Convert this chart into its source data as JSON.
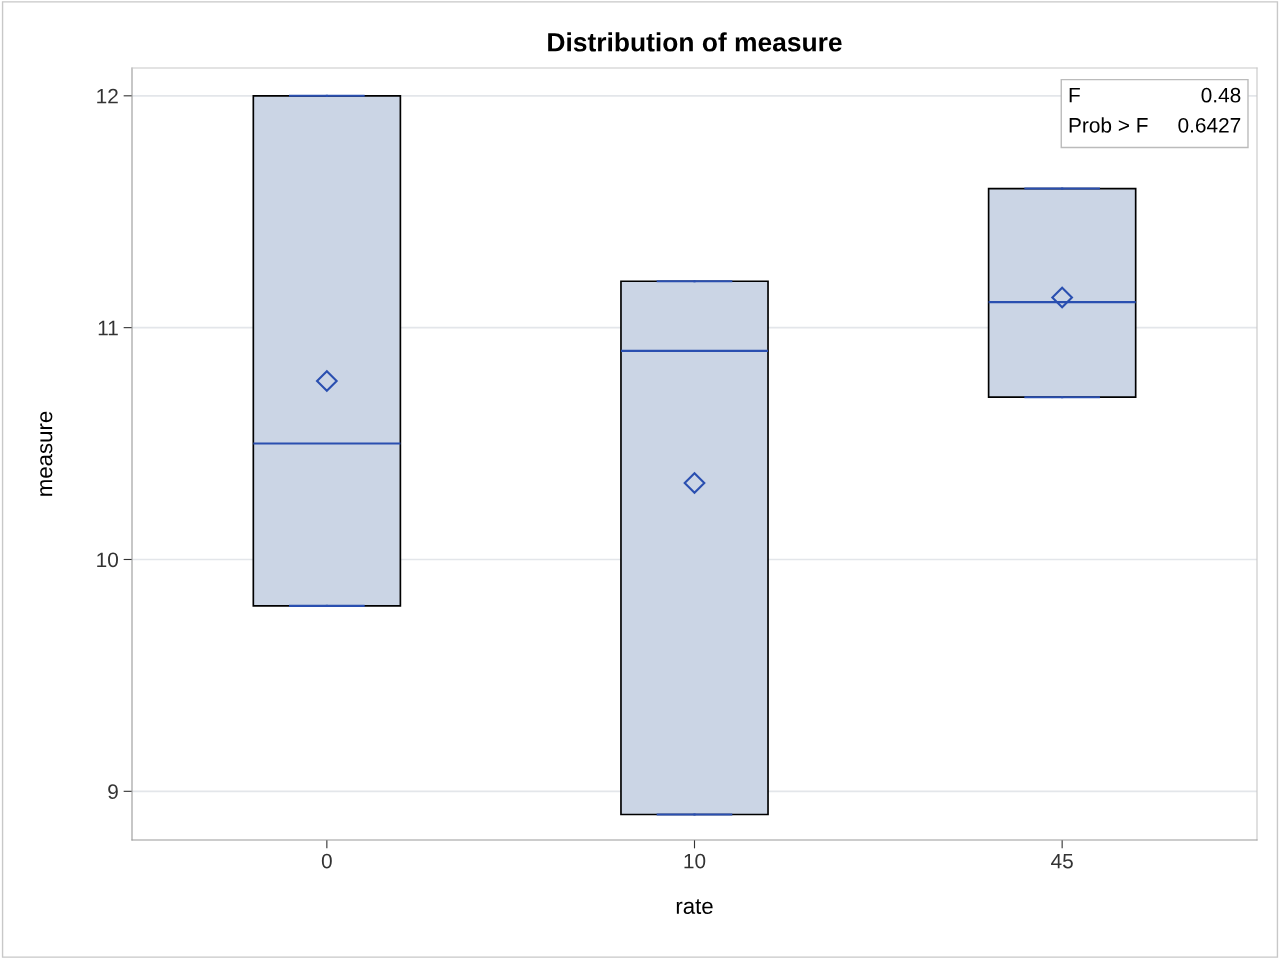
{
  "chart_data": {
    "type": "box",
    "title": "Distribution of measure",
    "xlabel": "rate",
    "ylabel": "measure",
    "categories": [
      "0",
      "10",
      "45"
    ],
    "boxes": [
      {
        "low": 9.8,
        "q1": 9.8,
        "median": 10.5,
        "q3": 12.0,
        "high": 12.0,
        "mean": 10.77
      },
      {
        "low": 8.9,
        "q1": 8.9,
        "median": 10.9,
        "q3": 11.2,
        "high": 11.2,
        "mean": 10.33
      },
      {
        "low": 10.7,
        "q1": 10.7,
        "median": 11.11,
        "q3": 11.6,
        "high": 11.6,
        "mean": 11.13
      }
    ],
    "color": "#cbd5e5",
    "ylim": [
      8.79,
      12.12
    ],
    "yticks": [
      9,
      10,
      11,
      12
    ],
    "grid": "y",
    "marker": "diamond",
    "annotations": [
      "F",
      "0.48",
      "Prob > F",
      "0.6427"
    ]
  }
}
